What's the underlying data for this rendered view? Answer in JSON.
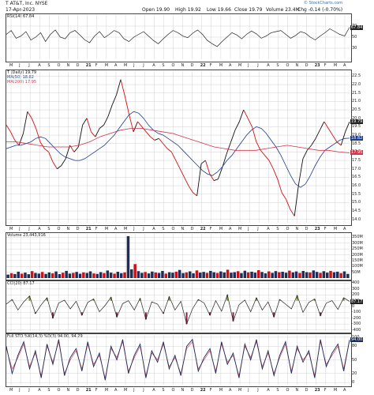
{
  "header": {
    "symbol_line": "T AT&T, Inc.  NYSE",
    "date": "17-Apr-2023",
    "open": "Open 19.90",
    "high": "High 19.92",
    "low": "Low 19.66",
    "close": "Close 19.79",
    "volume": "Volume 23.4M",
    "change": "Chg -0.14 (-0.70%)",
    "watermark": "© StockCharts.com"
  },
  "colors": {
    "price_up": "#111111",
    "price_down": "#d11111",
    "ma50": "#1a3a8c",
    "ma200": "#d2344a",
    "grid": "#c8c8c8",
    "panel_border": "#444444"
  },
  "chart_data": [
    {
      "type": "line",
      "title": "RSI(14) 67.84",
      "series": [
        {
          "name": "RSI(14)",
          "values": [
            55,
            62,
            48,
            52,
            60,
            45,
            50,
            58,
            42,
            55,
            63,
            50,
            47,
            58,
            62,
            54,
            45,
            40,
            52,
            60,
            49,
            55,
            62,
            58,
            47,
            42,
            50,
            55,
            60,
            52,
            44,
            38,
            47,
            55,
            62,
            58,
            52,
            49,
            57,
            63,
            55,
            44,
            38,
            33,
            42,
            50,
            58,
            54,
            47,
            55,
            61,
            56,
            48,
            52,
            58,
            60,
            62,
            55,
            48,
            53,
            60,
            57,
            50,
            45,
            52,
            58,
            65,
            60,
            55,
            52,
            67.84
          ]
        }
      ],
      "ylim": [
        10,
        90
      ],
      "yticks": [
        "70",
        "50",
        "30"
      ],
      "tag": "67.84"
    },
    {
      "type": "line",
      "title": "T (Daily) 19.79",
      "series": [
        {
          "name": "T (Daily)",
          "values": [
            19.6,
            19.2,
            18.7,
            18.4,
            19.1,
            20.4,
            20.0,
            19.4,
            18.6,
            18.2,
            18.0,
            17.4,
            17.0,
            17.2,
            17.6,
            18.4,
            18.0,
            18.3,
            19.6,
            20.0,
            19.2,
            18.9,
            19.4,
            19.6,
            20.1,
            20.8,
            21.4,
            22.3,
            21.3,
            20.2,
            19.2,
            19.8,
            19.5,
            19.2,
            18.9,
            18.7,
            18.8,
            18.5,
            18.2,
            18.0,
            17.5,
            17.0,
            16.5,
            16.0,
            15.6,
            15.4,
            17.3,
            17.5,
            16.7,
            16.3,
            16.4,
            17.1,
            17.9,
            18.6,
            19.3,
            19.8,
            20.5,
            20.0,
            19.5,
            18.6,
            18.1,
            17.8,
            17.5,
            17.0,
            16.4,
            15.6,
            15.2,
            14.6,
            14.2,
            16.1,
            17.6,
            18.1,
            18.4,
            18.8,
            19.3,
            19.8,
            19.4,
            19.0,
            18.6,
            18.4,
            19.2,
            19.79
          ]
        },
        {
          "name": "MA(50) 18.82",
          "values": [
            18.2,
            18.3,
            18.4,
            18.4,
            18.5,
            18.6,
            18.8,
            18.9,
            18.8,
            18.5,
            18.2,
            17.9,
            17.7,
            17.6,
            17.5,
            17.5,
            17.6,
            17.8,
            18.0,
            18.2,
            18.4,
            18.7,
            19.0,
            19.4,
            19.8,
            20.2,
            20.4,
            20.3,
            20.0,
            19.6,
            19.3,
            19.1,
            19.0,
            18.8,
            18.6,
            18.4,
            18.1,
            17.8,
            17.5,
            17.2,
            16.9,
            16.7,
            16.6,
            16.8,
            17.1,
            17.5,
            17.8,
            18.2,
            18.6,
            19.0,
            19.3,
            19.5,
            19.4,
            19.1,
            18.7,
            18.3,
            17.8,
            17.2,
            16.6,
            16.1,
            15.9,
            16.1,
            16.6,
            17.2,
            17.7,
            18.1,
            18.3,
            18.5,
            18.7,
            18.8,
            18.82
          ]
        },
        {
          "name": "MA(200) 17.95",
          "values": [
            18.6,
            18.6,
            18.5,
            18.4,
            18.3,
            18.3,
            18.3,
            18.4,
            18.6,
            18.9,
            19.1,
            19.3,
            19.4,
            19.4,
            19.3,
            19.2,
            19.1,
            18.9,
            18.7,
            18.5,
            18.3,
            18.2,
            18.1,
            18.1,
            18.1,
            18.2,
            18.3,
            18.4,
            18.3,
            18.2,
            18.1,
            18.1,
            18.0,
            17.95
          ]
        }
      ],
      "ylim": [
        13.8,
        22.8
      ],
      "yticks": [
        "22.5",
        "22.0",
        "21.5",
        "21.0",
        "20.5",
        "20.0",
        "19.5",
        "19.0",
        "18.5",
        "18.0",
        "17.5",
        "17.0",
        "16.5",
        "16.0",
        "15.5",
        "15.0",
        "14.5",
        "14.0"
      ],
      "tags": [
        {
          "label": "19.79",
          "color": "#222222",
          "value": 19.79
        },
        {
          "label": "18.82",
          "color": "#1a3a8c",
          "value": 18.82
        },
        {
          "label": "17.95",
          "color": "#d2344a",
          "value": 17.95
        }
      ],
      "legend": [
        "T (Daily) 19.79",
        "MA(50) 18.82",
        "MA(200) 17.95"
      ]
    },
    {
      "type": "bar",
      "title": "Volume 23,443,916",
      "values": [
        30,
        42,
        35,
        55,
        38,
        47,
        33,
        60,
        44,
        39,
        52,
        36,
        48,
        41,
        57,
        34,
        46,
        62,
        39,
        45,
        53,
        37,
        49,
        44,
        58,
        40,
        36,
        51,
        43,
        65,
        47,
        38,
        54,
        42,
        49,
        360,
        75,
        120,
        60,
        45,
        52,
        40,
        56,
        48,
        44,
        61,
        39,
        50,
        46,
        55,
        70,
        43,
        49,
        58,
        41,
        66,
        47,
        53,
        45,
        62,
        50,
        44,
        57,
        48,
        72,
        46,
        51,
        59,
        43,
        63,
        49,
        55,
        47,
        68,
        52,
        41,
        58,
        45,
        60,
        50,
        54,
        46,
        64,
        49,
        57,
        44,
        61,
        51,
        48,
        66,
        53,
        45,
        59,
        47,
        62,
        50,
        55,
        43,
        58,
        36
      ],
      "ylim": [
        0,
        380
      ],
      "yticks": [
        "350M",
        "300M",
        "250M",
        "200M",
        "150M",
        "100M",
        "50M"
      ]
    },
    {
      "type": "line",
      "title": "CCI(20) 87.17",
      "series": [
        {
          "name": "CCI(20)",
          "values": [
            40,
            120,
            -60,
            80,
            180,
            -120,
            30,
            150,
            -200,
            60,
            110,
            -40,
            90,
            -150,
            70,
            130,
            -90,
            20,
            160,
            -180,
            50,
            100,
            -60,
            140,
            -220,
            80,
            40,
            -120,
            170,
            -60,
            90,
            -300,
            -40,
            120,
            60,
            -150,
            100,
            -80,
            200,
            -250,
            30,
            110,
            -90,
            150,
            -60,
            80,
            -180,
            120,
            40,
            -40,
            190,
            -100,
            70,
            130,
            -160,
            60,
            100,
            -50,
            150,
            87.17
          ]
        }
      ],
      "ylim": [
        -420,
        420
      ],
      "yticks": [
        "400",
        "300",
        "200",
        "100",
        "0",
        "-100",
        "-200",
        "-300",
        "-400"
      ],
      "tag": "87.17"
    },
    {
      "type": "line",
      "title": "Full STO %K(14,3) %D(3) 94.00, 94.29",
      "series": [
        {
          "name": "%K",
          "values": [
            80,
            20,
            60,
            90,
            30,
            70,
            10,
            85,
            40,
            95,
            15,
            55,
            75,
            25,
            90,
            35,
            65,
            5,
            80,
            50,
            95,
            20,
            60,
            85,
            10,
            70,
            45,
            90,
            30,
            60,
            15,
            80,
            95,
            25,
            55,
            75,
            20,
            90,
            40,
            65,
            10,
            85,
            50,
            95,
            30,
            70,
            15,
            60,
            90,
            20,
            80,
            45,
            70,
            10,
            95,
            35,
            65,
            85,
            25,
            94
          ]
        },
        {
          "name": "%D",
          "values": [
            75,
            30,
            55,
            85,
            35,
            65,
            15,
            80,
            45,
            90,
            20,
            50,
            70,
            30,
            85,
            40,
            60,
            10,
            75,
            55,
            90,
            25,
            55,
            80,
            15,
            65,
            50,
            85,
            35,
            55,
            20,
            75,
            90,
            30,
            50,
            70,
            25,
            85,
            45,
            60,
            15,
            80,
            55,
            90,
            35,
            65,
            20,
            55,
            85,
            25,
            75,
            50,
            65,
            15,
            90,
            40,
            60,
            80,
            30,
            94.29
          ]
        }
      ],
      "ylim": [
        -5,
        105
      ],
      "yticks": [
        "100",
        "80",
        "50",
        "20",
        "0"
      ],
      "tag": "94.00"
    }
  ],
  "xaxis": {
    "top_labels": [
      "M",
      "J",
      "J",
      "A",
      "S",
      "O",
      "N",
      "D",
      "21",
      "F",
      "M",
      "A",
      "M",
      "J",
      "J",
      "A",
      "S",
      "O",
      "N",
      "D",
      "22",
      "F",
      "M",
      "A",
      "M",
      "J",
      "J",
      "A",
      "S",
      "O",
      "N",
      "D",
      "23",
      "F",
      "M",
      "A"
    ]
  }
}
